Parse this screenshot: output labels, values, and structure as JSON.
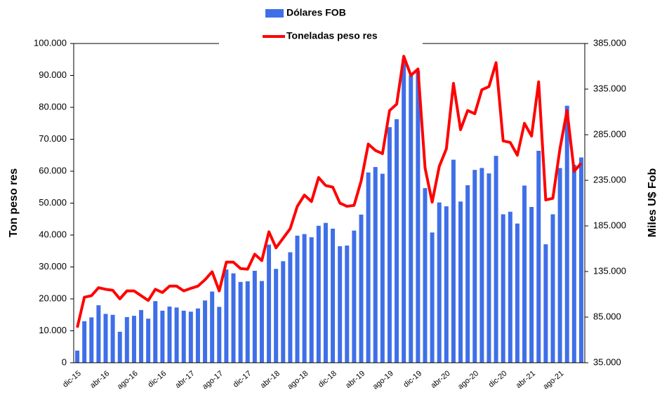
{
  "chart_data": {
    "type": "bar_line",
    "y_label": "Ton peso res",
    "y2_label": "Miles U$ Fob",
    "categories": [
      "dic-15",
      null,
      null,
      null,
      "abr-16",
      null,
      null,
      null,
      "ago-16",
      null,
      null,
      null,
      "dic-16",
      null,
      null,
      null,
      "abr-17",
      null,
      null,
      null,
      "ago-17",
      null,
      null,
      null,
      "dic-17",
      null,
      null,
      null,
      "abr-18",
      null,
      null,
      null,
      "ago-18",
      null,
      null,
      null,
      "dic-18",
      null,
      null,
      null,
      "abr-19",
      null,
      null,
      null,
      "ago-19",
      null,
      null,
      null,
      "dic-19",
      null,
      null,
      null,
      "abr-20",
      null,
      null,
      null,
      "ago-20",
      null,
      null,
      null,
      "dic-20",
      null,
      null,
      null,
      "abr-21",
      null,
      null,
      null,
      "ago-21",
      null,
      null,
      null
    ],
    "series": [
      {
        "name": "Dólares FOB",
        "type": "bar",
        "axis": "y2",
        "color": "#3f6fe8",
        "values": [
          48300,
          80500,
          84700,
          98000,
          88550,
          87500,
          68950,
          85050,
          86450,
          92750,
          83300,
          102550,
          92050,
          96600,
          95550,
          92050,
          91000,
          94500,
          103250,
          113050,
          96250,
          137200,
          133000,
          123550,
          124250,
          135800,
          124600,
          164500,
          137900,
          146300,
          156100,
          174300,
          176050,
          172550,
          185150,
          188300,
          182000,
          162750,
          163450,
          179900,
          197400,
          243600,
          249550,
          242200,
          293300,
          302050,
          367500,
          350000,
          354900,
          226450,
          177800,
          210700,
          206500,
          257600,
          211750,
          229600,
          246400,
          248500,
          242550,
          261800,
          197750,
          200550,
          187600,
          229250,
          205800,
          267400,
          164850,
          197750,
          248500,
          316750,
          252000,
          260050
        ]
      },
      {
        "name": "Toneladas peso res",
        "type": "line",
        "axis": "y",
        "color": "#ff0000",
        "values": [
          11000,
          20500,
          21000,
          23500,
          23000,
          22700,
          20000,
          22500,
          22500,
          21000,
          19500,
          23000,
          22000,
          24000,
          24000,
          22500,
          23300,
          24000,
          26000,
          28500,
          22500,
          31500,
          31500,
          29500,
          29300,
          34000,
          32000,
          41000,
          36000,
          39000,
          42000,
          49000,
          52500,
          50500,
          58000,
          55500,
          55000,
          50000,
          49000,
          49300,
          57000,
          68500,
          66500,
          65500,
          79000,
          81000,
          96000,
          90000,
          92000,
          61000,
          50300,
          61500,
          67000,
          87500,
          73000,
          79000,
          78000,
          85500,
          86500,
          94000,
          69500,
          69000,
          65000,
          75000,
          71000,
          88000,
          51000,
          51500,
          67000,
          79000,
          60000,
          62500
        ]
      }
    ],
    "ylim": [
      0,
      100000
    ],
    "yticks": [
      0,
      {
        "value": 10000,
        "label": "10.000"
      },
      {
        "value": 20000,
        "label": "20.000"
      },
      {
        "value": 30000,
        "label": "30.000"
      },
      {
        "value": 40000,
        "label": "40.000"
      },
      {
        "value": 50000,
        "label": "50.000"
      },
      {
        "value": 60000,
        "label": "60.000"
      },
      {
        "value": 70000,
        "label": "70.000"
      },
      {
        "value": 80000,
        "label": "80.000"
      },
      {
        "value": 90000,
        "label": "90.000"
      },
      {
        "value": 100000,
        "label": "100.000"
      }
    ],
    "y2lim": [
      35000,
      385000
    ],
    "y2ticks": [
      {
        "value": 35000,
        "label": "35.000"
      },
      {
        "value": 85000,
        "label": "85.000"
      },
      {
        "value": 135000,
        "label": "135.000"
      },
      {
        "value": 185000,
        "label": "185.000"
      },
      {
        "value": 235000,
        "label": "235.000"
      },
      {
        "value": 285000,
        "label": "285.000"
      },
      {
        "value": 335000,
        "label": "335.000"
      },
      {
        "value": 385000,
        "label": "385.000"
      }
    ]
  }
}
